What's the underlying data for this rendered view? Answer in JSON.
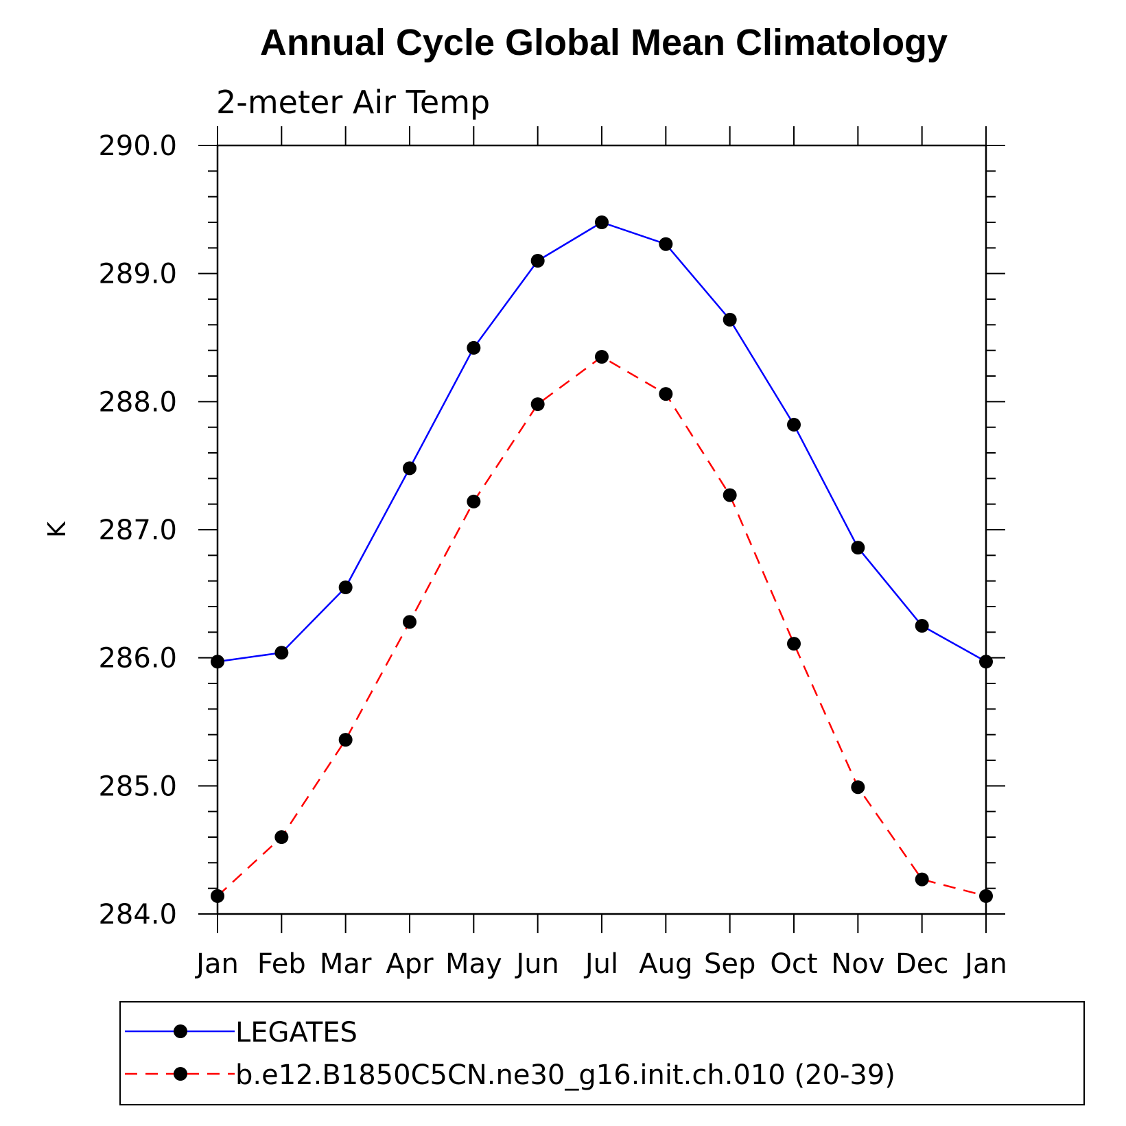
{
  "chart_data": {
    "type": "line",
    "title": "Annual Cycle Global Mean Climatology",
    "subtitle": "2-meter Air Temp",
    "xlabel": "",
    "ylabel": "K",
    "categories": [
      "Jan",
      "Feb",
      "Mar",
      "Apr",
      "May",
      "Jun",
      "Jul",
      "Aug",
      "Sep",
      "Oct",
      "Nov",
      "Dec",
      "Jan"
    ],
    "yticks": [
      "284.0",
      "285.0",
      "286.0",
      "287.0",
      "288.0",
      "289.0",
      "290.0"
    ],
    "ylim": [
      284.0,
      290.0
    ],
    "grid": false,
    "legend_position": "bottom",
    "series": [
      {
        "name": "LEGATES",
        "color": "#0000ff",
        "style": "solid",
        "values": [
          285.97,
          286.04,
          286.55,
          287.48,
          288.42,
          289.1,
          289.4,
          289.23,
          288.64,
          287.82,
          286.86,
          286.25,
          285.97
        ]
      },
      {
        "name": "b.e12.B1850C5CN.ne30_g16.init.ch.010 (20-39)",
        "color": "#ff0000",
        "style": "dashed",
        "values": [
          284.14,
          284.6,
          285.36,
          286.28,
          287.22,
          287.98,
          288.35,
          288.06,
          287.27,
          286.11,
          284.99,
          284.27,
          284.14
        ]
      }
    ]
  }
}
